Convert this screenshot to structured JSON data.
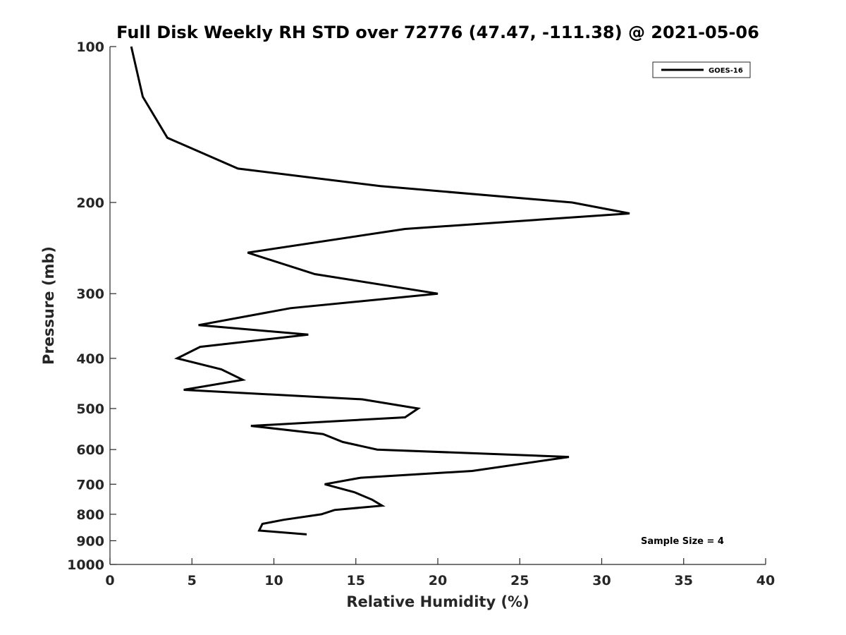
{
  "colors": {
    "line": "#000000",
    "axis": "#262626",
    "background": "#ffffff"
  },
  "chart_data": {
    "type": "line",
    "title": "Full Disk Weekly RH STD over 72776 (47.47, -111.38) @ 2021-05-06",
    "xlabel": "Relative Humidity (%)",
    "ylabel": "Pressure (mb)",
    "xlim": [
      0,
      40
    ],
    "ylim": [
      100,
      1000
    ],
    "yscale": "log",
    "y_reversed": true,
    "grid": false,
    "x_ticks": [
      0,
      5,
      10,
      15,
      20,
      25,
      30,
      35,
      40
    ],
    "x_tick_labels": [
      "0",
      "5",
      "10",
      "15",
      "20",
      "25",
      "30",
      "35",
      "40"
    ],
    "y_ticks": [
      100,
      200,
      300,
      400,
      500,
      600,
      700,
      800,
      900,
      1000
    ],
    "y_tick_labels": [
      "100",
      "200",
      "300",
      "400",
      "500",
      "600",
      "700",
      "800",
      "900",
      "1000"
    ],
    "legend": {
      "location": "top-right",
      "entries": [
        "GOES-16"
      ]
    },
    "annotation": "Sample Size = 4",
    "series": [
      {
        "name": "GOES-16",
        "x": [
          1.3,
          2.0,
          3.5,
          7.8,
          16.5,
          28.2,
          31.7,
          18.0,
          8.4,
          12.5,
          20.0,
          11.0,
          5.4,
          12.1,
          5.5,
          4.1,
          6.8,
          8.1,
          4.5,
          15.4,
          18.8,
          18.0,
          8.6,
          13.0,
          14.2,
          16.3,
          28.0,
          22.1,
          15.3,
          13.1,
          14.9,
          16.0,
          16.6,
          13.7,
          12.9,
          10.6,
          9.3,
          9.1,
          12.0
        ],
        "y": [
          100,
          125,
          150,
          172,
          186,
          200,
          210,
          225,
          250,
          275,
          300,
          320,
          345,
          360,
          380,
          400,
          420,
          440,
          460,
          480,
          500,
          520,
          540,
          560,
          580,
          600,
          620,
          660,
          680,
          700,
          725,
          750,
          770,
          785,
          800,
          820,
          835,
          860,
          875
        ]
      }
    ]
  }
}
